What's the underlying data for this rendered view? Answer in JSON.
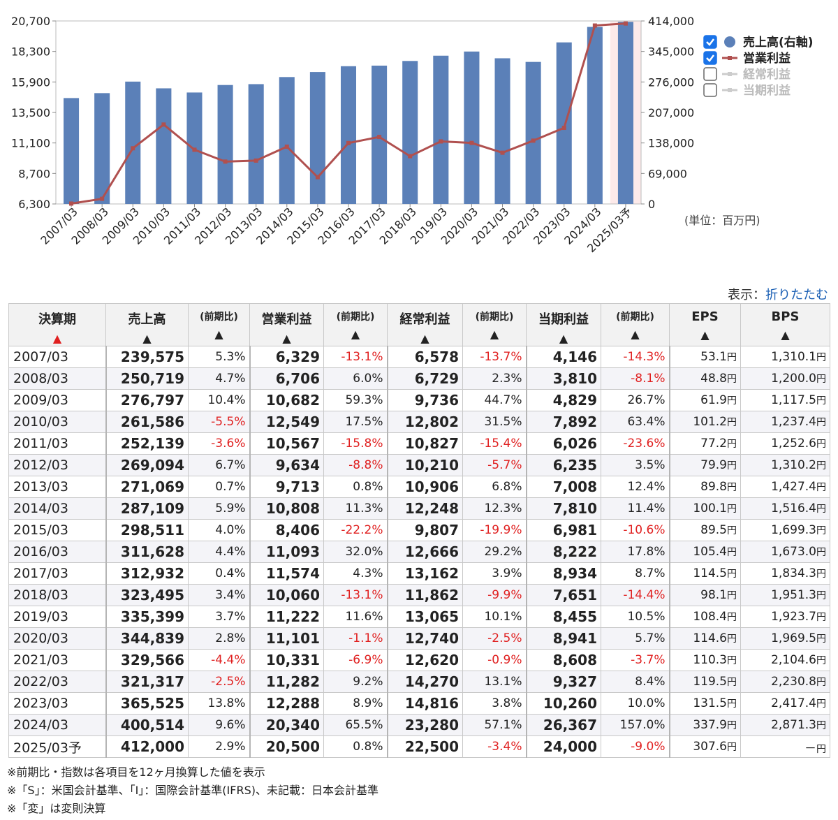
{
  "chart_data": {
    "type": "bar+line",
    "categories": [
      "2007/03",
      "2008/03",
      "2009/03",
      "2010/03",
      "2011/03",
      "2012/03",
      "2013/03",
      "2014/03",
      "2015/03",
      "2016/03",
      "2017/03",
      "2018/03",
      "2019/03",
      "2020/03",
      "2021/03",
      "2022/03",
      "2023/03",
      "2024/03",
      "2025/03予"
    ],
    "series": [
      {
        "name": "売上高(右軸)",
        "type": "bar",
        "axis": "right",
        "color": "#5b80b8",
        "values": [
          239575,
          250719,
          276797,
          261586,
          252139,
          269094,
          271069,
          287109,
          298511,
          311628,
          312932,
          323495,
          335399,
          344839,
          329566,
          321317,
          365525,
          400514,
          412000
        ]
      },
      {
        "name": "営業利益",
        "type": "line",
        "axis": "left",
        "color": "#b0504f",
        "values": [
          6329,
          6706,
          10682,
          12549,
          10567,
          9634,
          9713,
          10808,
          8406,
          11093,
          11574,
          10060,
          11222,
          11101,
          10331,
          11282,
          12288,
          20340,
          20500
        ]
      }
    ],
    "left_ticks": [
      "20,700",
      "18,300",
      "15,900",
      "13,500",
      "11,100",
      "8,700",
      "6,300"
    ],
    "right_ticks": [
      "414,000",
      "345,000",
      "276,000",
      "207,000",
      "138,000",
      "69,000",
      "0"
    ],
    "ylim_left": [
      6300,
      20700
    ],
    "ylim_right": [
      0,
      414000
    ],
    "legend": [
      {
        "label": "売上高(右軸)",
        "checked": true,
        "marker": "circle",
        "color": "#5b80b8",
        "text_color": "#222222"
      },
      {
        "label": "営業利益",
        "checked": true,
        "marker": "line",
        "color": "#b0504f",
        "text_color": "#222222"
      },
      {
        "label": "経常利益",
        "checked": false,
        "marker": "line",
        "color": "#cccccc",
        "text_color": "#bbbbbb"
      },
      {
        "label": "当期利益",
        "checked": false,
        "marker": "line",
        "color": "#cccccc",
        "text_color": "#bbbbbb"
      }
    ],
    "highlight_category": "2025/03予",
    "legend_position": "right",
    "unit": "(単位：百万円)"
  },
  "display": {
    "label": "表示：",
    "link": "折りたたむ"
  },
  "table": {
    "headers": {
      "period": "決算期",
      "sales": "売上高",
      "yoy": "(前期比)",
      "op": "営業利益",
      "ord": "経常利益",
      "net": "当期利益",
      "eps": "EPS",
      "bps": "BPS",
      "arrow": "▲"
    },
    "rows": [
      {
        "period": "2007/03",
        "sales": "239,575",
        "sales_yoy": "5.3%",
        "op": "6,329",
        "op_yoy": "-13.1%",
        "ord": "6,578",
        "ord_yoy": "-13.7%",
        "net": "4,146",
        "net_yoy": "-14.3%",
        "eps": "53.1",
        "bps": "1,310.1"
      },
      {
        "period": "2008/03",
        "sales": "250,719",
        "sales_yoy": "4.7%",
        "op": "6,706",
        "op_yoy": "6.0%",
        "ord": "6,729",
        "ord_yoy": "2.3%",
        "net": "3,810",
        "net_yoy": "-8.1%",
        "eps": "48.8",
        "bps": "1,200.0"
      },
      {
        "period": "2009/03",
        "sales": "276,797",
        "sales_yoy": "10.4%",
        "op": "10,682",
        "op_yoy": "59.3%",
        "ord": "9,736",
        "ord_yoy": "44.7%",
        "net": "4,829",
        "net_yoy": "26.7%",
        "eps": "61.9",
        "bps": "1,117.5"
      },
      {
        "period": "2010/03",
        "sales": "261,586",
        "sales_yoy": "-5.5%",
        "op": "12,549",
        "op_yoy": "17.5%",
        "ord": "12,802",
        "ord_yoy": "31.5%",
        "net": "7,892",
        "net_yoy": "63.4%",
        "eps": "101.2",
        "bps": "1,237.4"
      },
      {
        "period": "2011/03",
        "sales": "252,139",
        "sales_yoy": "-3.6%",
        "op": "10,567",
        "op_yoy": "-15.8%",
        "ord": "10,827",
        "ord_yoy": "-15.4%",
        "net": "6,026",
        "net_yoy": "-23.6%",
        "eps": "77.2",
        "bps": "1,252.6"
      },
      {
        "period": "2012/03",
        "sales": "269,094",
        "sales_yoy": "6.7%",
        "op": "9,634",
        "op_yoy": "-8.8%",
        "ord": "10,210",
        "ord_yoy": "-5.7%",
        "net": "6,235",
        "net_yoy": "3.5%",
        "eps": "79.9",
        "bps": "1,310.2"
      },
      {
        "period": "2013/03",
        "sales": "271,069",
        "sales_yoy": "0.7%",
        "op": "9,713",
        "op_yoy": "0.8%",
        "ord": "10,906",
        "ord_yoy": "6.8%",
        "net": "7,008",
        "net_yoy": "12.4%",
        "eps": "89.8",
        "bps": "1,427.4"
      },
      {
        "period": "2014/03",
        "sales": "287,109",
        "sales_yoy": "5.9%",
        "op": "10,808",
        "op_yoy": "11.3%",
        "ord": "12,248",
        "ord_yoy": "12.3%",
        "net": "7,810",
        "net_yoy": "11.4%",
        "eps": "100.1",
        "bps": "1,516.4"
      },
      {
        "period": "2015/03",
        "sales": "298,511",
        "sales_yoy": "4.0%",
        "op": "8,406",
        "op_yoy": "-22.2%",
        "ord": "9,807",
        "ord_yoy": "-19.9%",
        "net": "6,981",
        "net_yoy": "-10.6%",
        "eps": "89.5",
        "bps": "1,699.3"
      },
      {
        "period": "2016/03",
        "sales": "311,628",
        "sales_yoy": "4.4%",
        "op": "11,093",
        "op_yoy": "32.0%",
        "ord": "12,666",
        "ord_yoy": "29.2%",
        "net": "8,222",
        "net_yoy": "17.8%",
        "eps": "105.4",
        "bps": "1,673.0"
      },
      {
        "period": "2017/03",
        "sales": "312,932",
        "sales_yoy": "0.4%",
        "op": "11,574",
        "op_yoy": "4.3%",
        "ord": "13,162",
        "ord_yoy": "3.9%",
        "net": "8,934",
        "net_yoy": "8.7%",
        "eps": "114.5",
        "bps": "1,834.3"
      },
      {
        "period": "2018/03",
        "sales": "323,495",
        "sales_yoy": "3.4%",
        "op": "10,060",
        "op_yoy": "-13.1%",
        "ord": "11,862",
        "ord_yoy": "-9.9%",
        "net": "7,651",
        "net_yoy": "-14.4%",
        "eps": "98.1",
        "bps": "1,951.3"
      },
      {
        "period": "2019/03",
        "sales": "335,399",
        "sales_yoy": "3.7%",
        "op": "11,222",
        "op_yoy": "11.6%",
        "ord": "13,065",
        "ord_yoy": "10.1%",
        "net": "8,455",
        "net_yoy": "10.5%",
        "eps": "108.4",
        "bps": "1,923.7"
      },
      {
        "period": "2020/03",
        "sales": "344,839",
        "sales_yoy": "2.8%",
        "op": "11,101",
        "op_yoy": "-1.1%",
        "ord": "12,740",
        "ord_yoy": "-2.5%",
        "net": "8,941",
        "net_yoy": "5.7%",
        "eps": "114.6",
        "bps": "1,969.5"
      },
      {
        "period": "2021/03",
        "sales": "329,566",
        "sales_yoy": "-4.4%",
        "op": "10,331",
        "op_yoy": "-6.9%",
        "ord": "12,620",
        "ord_yoy": "-0.9%",
        "net": "8,608",
        "net_yoy": "-3.7%",
        "eps": "110.3",
        "bps": "2,104.6"
      },
      {
        "period": "2022/03",
        "sales": "321,317",
        "sales_yoy": "-2.5%",
        "op": "11,282",
        "op_yoy": "9.2%",
        "ord": "14,270",
        "ord_yoy": "13.1%",
        "net": "9,327",
        "net_yoy": "8.4%",
        "eps": "119.5",
        "bps": "2,230.8"
      },
      {
        "period": "2023/03",
        "sales": "365,525",
        "sales_yoy": "13.8%",
        "op": "12,288",
        "op_yoy": "8.9%",
        "ord": "14,816",
        "ord_yoy": "3.8%",
        "net": "10,260",
        "net_yoy": "10.0%",
        "eps": "131.5",
        "bps": "2,417.4"
      },
      {
        "period": "2024/03",
        "sales": "400,514",
        "sales_yoy": "9.6%",
        "op": "20,340",
        "op_yoy": "65.5%",
        "ord": "23,280",
        "ord_yoy": "57.1%",
        "net": "26,367",
        "net_yoy": "157.0%",
        "eps": "337.9",
        "bps": "2,871.3"
      },
      {
        "period": "2025/03予",
        "sales": "412,000",
        "sales_yoy": "2.9%",
        "op": "20,500",
        "op_yoy": "0.8%",
        "ord": "22,500",
        "ord_yoy": "-3.4%",
        "net": "24,000",
        "net_yoy": "-9.0%",
        "eps": "307.6",
        "bps": "－"
      }
    ],
    "yen": "円"
  },
  "notes": [
    "※前期比・指数は各項目を12ヶ月換算した値を表示",
    "※「S」：米国会計基準、「I」：国際会計基準(IFRS)、未記載：日本会計基準",
    "※「変」は変則決算"
  ]
}
